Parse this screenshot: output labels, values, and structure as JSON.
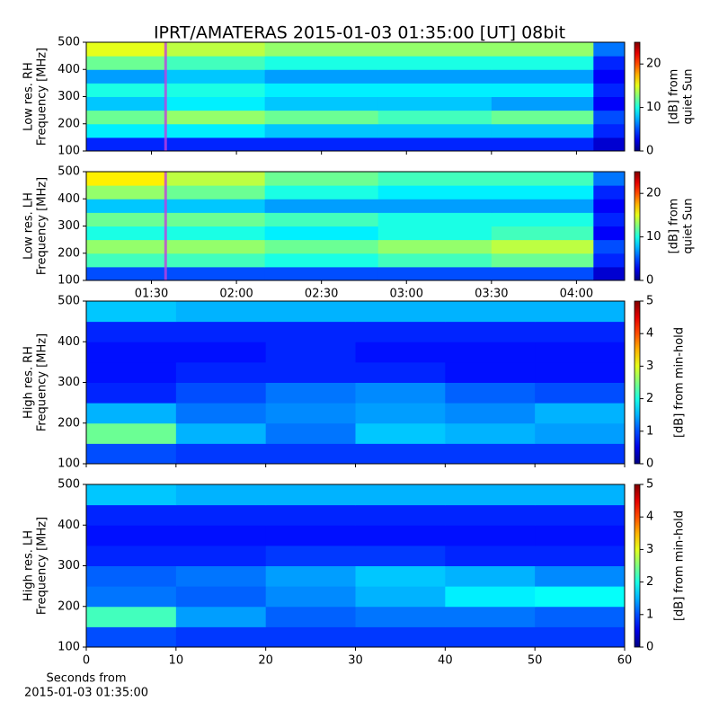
{
  "chart_data": [
    {
      "type": "heatmap",
      "title": "IPRT/AMATERAS 2015-01-03 01:35:00 [UT]   08bit",
      "ylabel": [
        "Low res. RH",
        "Frequency [MHz]"
      ],
      "ylim": [
        100,
        500
      ],
      "yticks": [
        100,
        200,
        300,
        400,
        500
      ],
      "xlim": [
        67,
        257
      ],
      "xticks": [
        90,
        120,
        150,
        180,
        210,
        240
      ],
      "show_xtick_labels": false,
      "xbins": [
        67,
        95,
        130,
        170,
        210,
        246,
        257
      ],
      "ybins": [
        100,
        150,
        200,
        250,
        300,
        350,
        400,
        450,
        500
      ],
      "values": [
        [
          4,
          4,
          4,
          4,
          4,
          2
        ],
        [
          9,
          9,
          8,
          8,
          8,
          4
        ],
        [
          12,
          13,
          12,
          11,
          12,
          5
        ],
        [
          8,
          9,
          8,
          8,
          7,
          3
        ],
        [
          10,
          10,
          9,
          9,
          9,
          4
        ],
        [
          7,
          8,
          7,
          7,
          7,
          3
        ],
        [
          12,
          11,
          10,
          10,
          10,
          4
        ],
        [
          15,
          14,
          13,
          13,
          13,
          6
        ]
      ],
      "clabel": [
        "[dB] from",
        "quiet Sun"
      ],
      "clim": [
        0,
        25
      ],
      "cticks": [
        0,
        10,
        20
      ],
      "colormap": "jet",
      "vline": {
        "x": 95,
        "color": "#c040e0"
      }
    },
    {
      "type": "heatmap",
      "ylabel": [
        "Low res. LH",
        "Frequency [MHz]"
      ],
      "ylim": [
        100,
        500
      ],
      "yticks": [
        100,
        200,
        300,
        400,
        500
      ],
      "xlim": [
        67,
        257
      ],
      "xticks": [
        {
          "value": 90,
          "label": "01:30"
        },
        {
          "value": 120,
          "label": "02:00"
        },
        {
          "value": 150,
          "label": "02:30"
        },
        {
          "value": 180,
          "label": "03:00"
        },
        {
          "value": 210,
          "label": "03:30"
        },
        {
          "value": 240,
          "label": "04:00"
        }
      ],
      "show_xtick_labels": true,
      "xbins": [
        67,
        95,
        130,
        170,
        210,
        246,
        257
      ],
      "ybins": [
        100,
        150,
        200,
        250,
        300,
        350,
        400,
        450,
        500
      ],
      "values": [
        [
          5,
          5,
          5,
          5,
          5,
          2
        ],
        [
          11,
          11,
          10,
          11,
          12,
          4
        ],
        [
          13,
          13,
          12,
          13,
          14,
          5
        ],
        [
          10,
          10,
          9,
          10,
          11,
          3
        ],
        [
          12,
          12,
          11,
          10,
          10,
          4
        ],
        [
          8,
          8,
          7,
          7,
          7,
          3
        ],
        [
          13,
          12,
          10,
          9,
          9,
          4
        ],
        [
          16,
          14,
          12,
          11,
          11,
          6
        ]
      ],
      "clabel": [
        "[dB] from",
        "quiet Sun"
      ],
      "clim": [
        0,
        25
      ],
      "cticks": [
        0,
        10,
        20
      ],
      "colormap": "jet",
      "vline": {
        "x": 95,
        "color": "#c040e0"
      }
    },
    {
      "type": "heatmap",
      "ylabel": [
        "High res. RH",
        "Frequency [MHz]"
      ],
      "ylim": [
        100,
        500
      ],
      "yticks": [
        100,
        200,
        300,
        400,
        500
      ],
      "xlim": [
        0,
        60
      ],
      "xticks": [
        0,
        10,
        20,
        30,
        40,
        50,
        60
      ],
      "show_xtick_labels": false,
      "xbins": [
        0,
        10,
        20,
        30,
        40,
        50,
        60
      ],
      "ybins": [
        100,
        150,
        200,
        250,
        300,
        350,
        400,
        450,
        500
      ],
      "values": [
        [
          1.0,
          0.9,
          0.9,
          0.9,
          0.9,
          0.9
        ],
        [
          2.4,
          1.5,
          1.2,
          1.6,
          1.5,
          1.4
        ],
        [
          1.5,
          1.2,
          1.3,
          1.4,
          1.3,
          1.5
        ],
        [
          0.8,
          1.0,
          1.2,
          1.3,
          1.1,
          1.0
        ],
        [
          0.7,
          0.8,
          0.8,
          0.8,
          0.7,
          0.7
        ],
        [
          0.7,
          0.7,
          0.8,
          0.7,
          0.7,
          0.7
        ],
        [
          0.8,
          0.8,
          0.8,
          0.8,
          0.8,
          0.8
        ],
        [
          1.6,
          1.5,
          1.5,
          1.5,
          1.5,
          1.5
        ]
      ],
      "clabel": [
        "[dB] from min-hold"
      ],
      "clim": [
        0,
        5
      ],
      "cticks": [
        0,
        1,
        2,
        3,
        4,
        5
      ],
      "colormap": "jet"
    },
    {
      "type": "heatmap",
      "ylabel": [
        "High res. LH",
        "Frequency [MHz]"
      ],
      "ylim": [
        100,
        500
      ],
      "yticks": [
        100,
        200,
        300,
        400,
        500
      ],
      "xlim": [
        0,
        60
      ],
      "xticks": [
        0,
        10,
        20,
        30,
        40,
        50,
        60
      ],
      "show_xtick_labels": true,
      "xlabel": [
        "Seconds from",
        "2015-01-03 01:35:00"
      ],
      "xbins": [
        0,
        10,
        20,
        30,
        40,
        50,
        60
      ],
      "ybins": [
        100,
        150,
        200,
        250,
        300,
        350,
        400,
        450,
        500
      ],
      "values": [
        [
          1.0,
          0.9,
          0.9,
          0.9,
          0.9,
          0.9
        ],
        [
          2.2,
          1.4,
          1.1,
          1.2,
          1.2,
          1.1
        ],
        [
          1.2,
          1.1,
          1.3,
          1.5,
          1.8,
          1.9
        ],
        [
          1.1,
          1.2,
          1.4,
          1.6,
          1.5,
          1.3
        ],
        [
          0.8,
          0.8,
          0.9,
          0.9,
          0.8,
          0.8
        ],
        [
          0.7,
          0.7,
          0.7,
          0.7,
          0.7,
          0.7
        ],
        [
          0.8,
          0.8,
          0.8,
          0.8,
          0.8,
          0.8
        ],
        [
          1.6,
          1.5,
          1.5,
          1.5,
          1.5,
          1.5
        ]
      ],
      "clabel": [
        "[dB] from min-hold"
      ],
      "clim": [
        0,
        5
      ],
      "cticks": [
        0,
        1,
        2,
        3,
        4,
        5
      ],
      "colormap": "jet"
    }
  ]
}
